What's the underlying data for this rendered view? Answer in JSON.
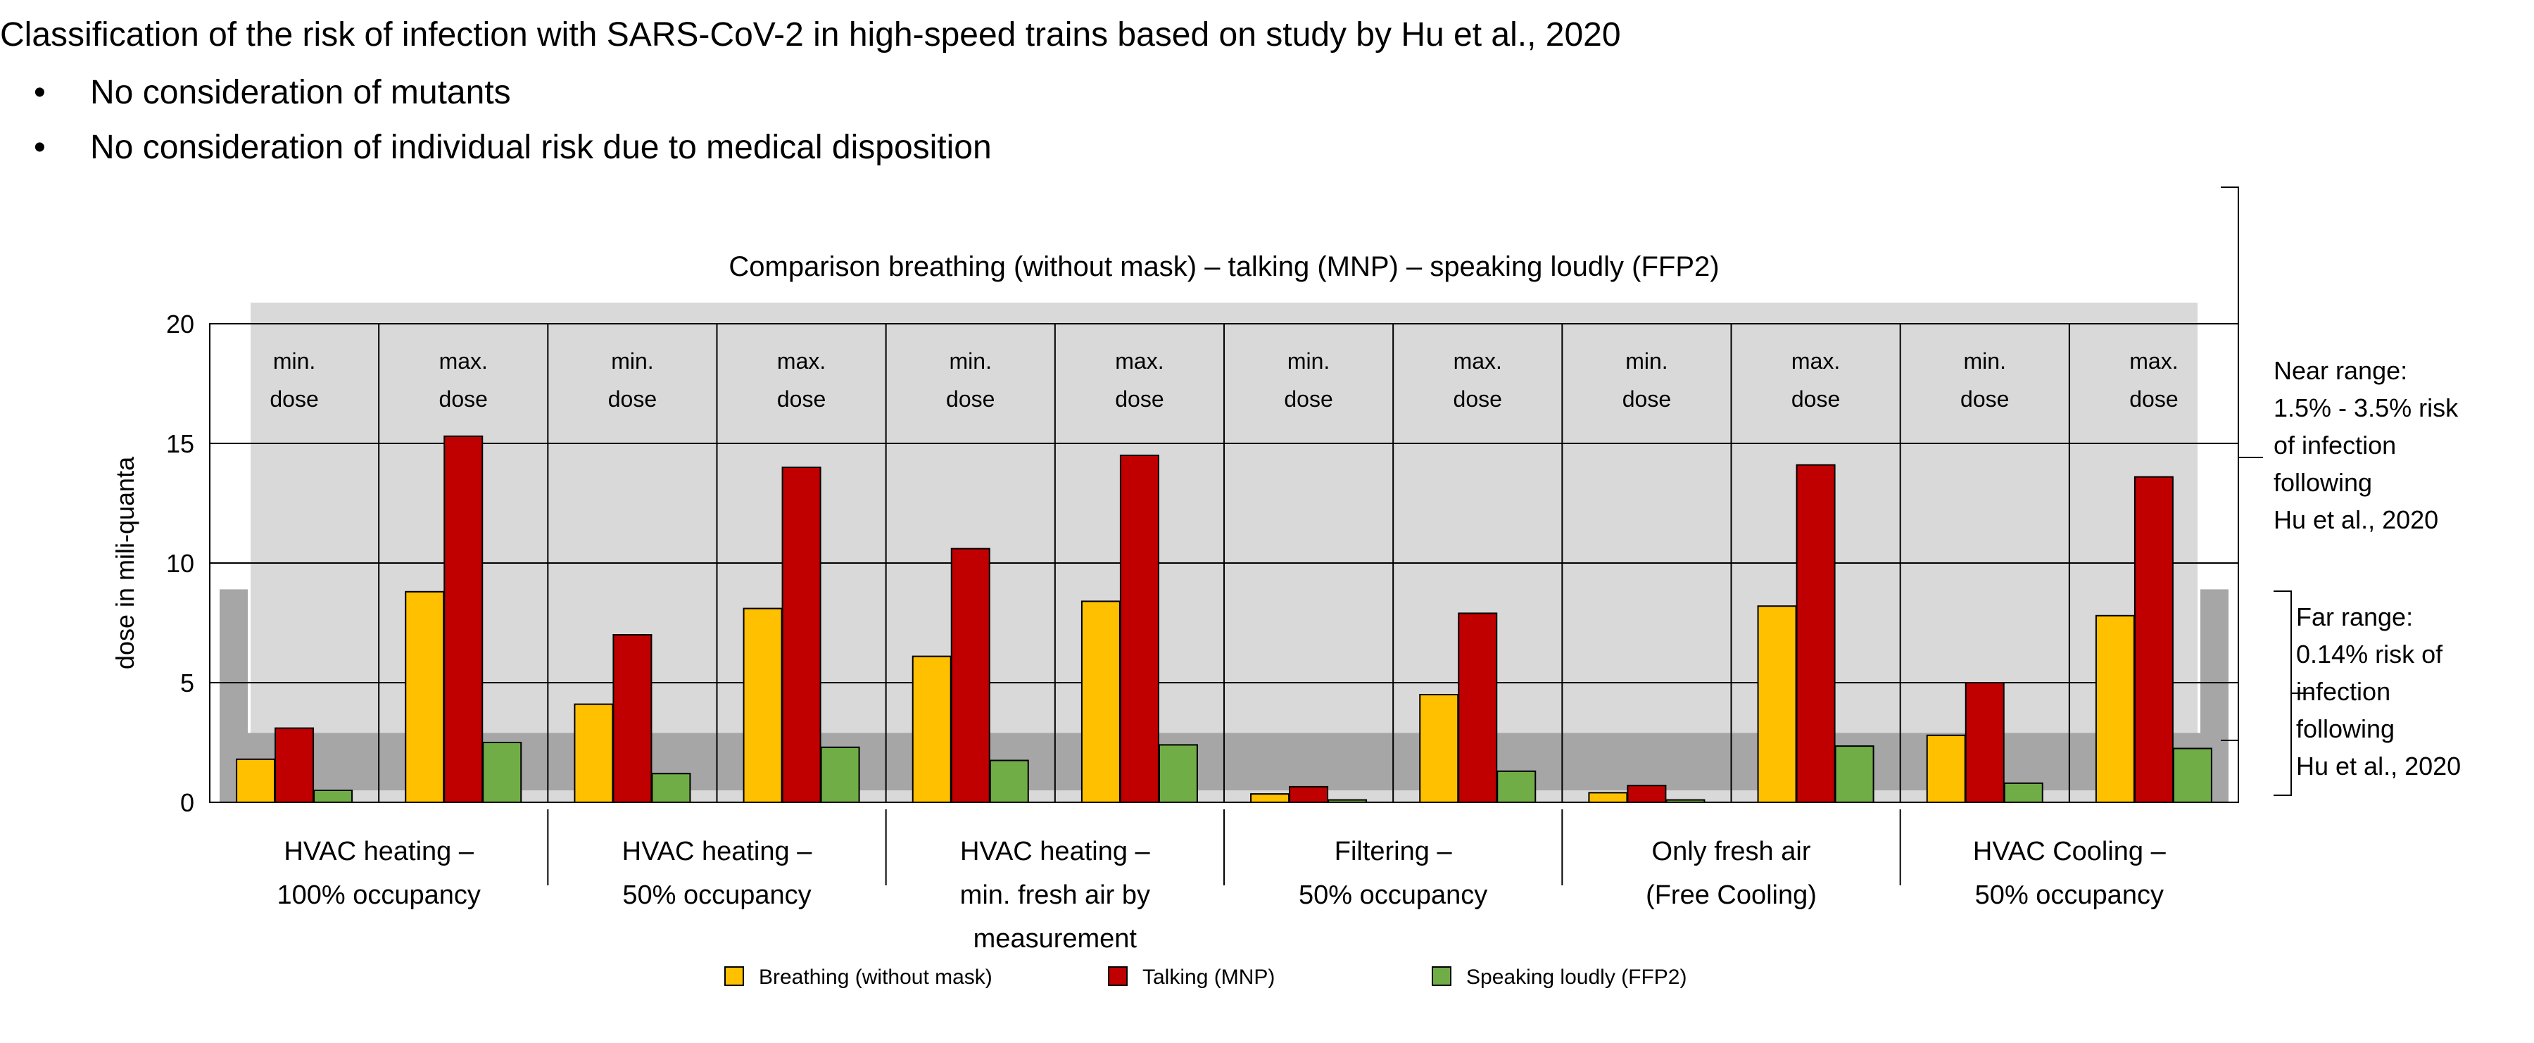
{
  "header": {
    "title": "Classification of the risk of infection with SARS-CoV-2 in high-speed trains based on study by Hu et al., 2020",
    "bullets": [
      {
        "symbol": "•",
        "text": "No consideration of mutants"
      },
      {
        "symbol": "•",
        "text": "No consideration of individual risk due to medical disposition"
      }
    ]
  },
  "annotations": {
    "near_range": [
      "Near range:",
      "1.5% - 3.5% risk",
      "of infection",
      "following",
      "Hu et al., 2020"
    ],
    "far_range": [
      "Far range:",
      "0.14% risk of",
      "infection",
      "following",
      "Hu et al., 2020"
    ]
  },
  "chart_data": {
    "type": "bar",
    "title": "Comparison breathing (without mask) – talking (MNP) – speaking loudly (FFP2)",
    "xlabel": "",
    "ylabel": "dose in mili-quanta",
    "ylim": [
      0,
      20
    ],
    "yticks": [
      0,
      5,
      10,
      15,
      20
    ],
    "grid": true,
    "legend_position": "bottom",
    "groups": [
      {
        "label": [
          "HVAC heating –",
          "100% occupancy"
        ]
      },
      {
        "label": [
          "HVAC heating –",
          "50% occupancy"
        ]
      },
      {
        "label": [
          "HVAC heating –",
          "min. fresh air by",
          "measurement"
        ]
      },
      {
        "label": [
          "Filtering –",
          "50% occupancy"
        ]
      },
      {
        "label": [
          "Only fresh air",
          "(Free Cooling)"
        ]
      },
      {
        "label": [
          "HVAC Cooling –",
          "50% occupancy"
        ]
      }
    ],
    "categories": [
      "min. dose",
      "max. dose",
      "min. dose",
      "max. dose",
      "min. dose",
      "max. dose",
      "min. dose",
      "max. dose",
      "min. dose",
      "max. dose",
      "min. dose",
      "max. dose"
    ],
    "category_lines": [
      [
        "min.",
        "dose"
      ],
      [
        "max.",
        "dose"
      ]
    ],
    "series": [
      {
        "name": "Breathing (without mask)",
        "color": "#FFC000",
        "values": [
          1.8,
          8.8,
          4.1,
          8.1,
          6.1,
          8.4,
          0.35,
          4.5,
          0.4,
          8.2,
          2.8,
          7.8
        ]
      },
      {
        "name": "Talking (MNP)",
        "color": "#C00000",
        "values": [
          3.1,
          15.3,
          7.0,
          14.0,
          10.6,
          14.5,
          0.65,
          7.9,
          0.7,
          14.1,
          5.0,
          13.6
        ]
      },
      {
        "name": "Speaking loudly (FFP2)",
        "color": "#70AD47",
        "values": [
          0.5,
          2.5,
          1.2,
          2.3,
          1.75,
          2.4,
          0.1,
          1.3,
          0.1,
          2.35,
          0.8,
          2.25
        ]
      }
    ],
    "risk_bands": [
      {
        "name": "near range",
        "ymin": 0,
        "ymax": 20,
        "color": "#D9D9D9"
      },
      {
        "name": "far range",
        "ymin": 0,
        "ymax": 8.9,
        "color": "#A6A6A6"
      }
    ]
  }
}
